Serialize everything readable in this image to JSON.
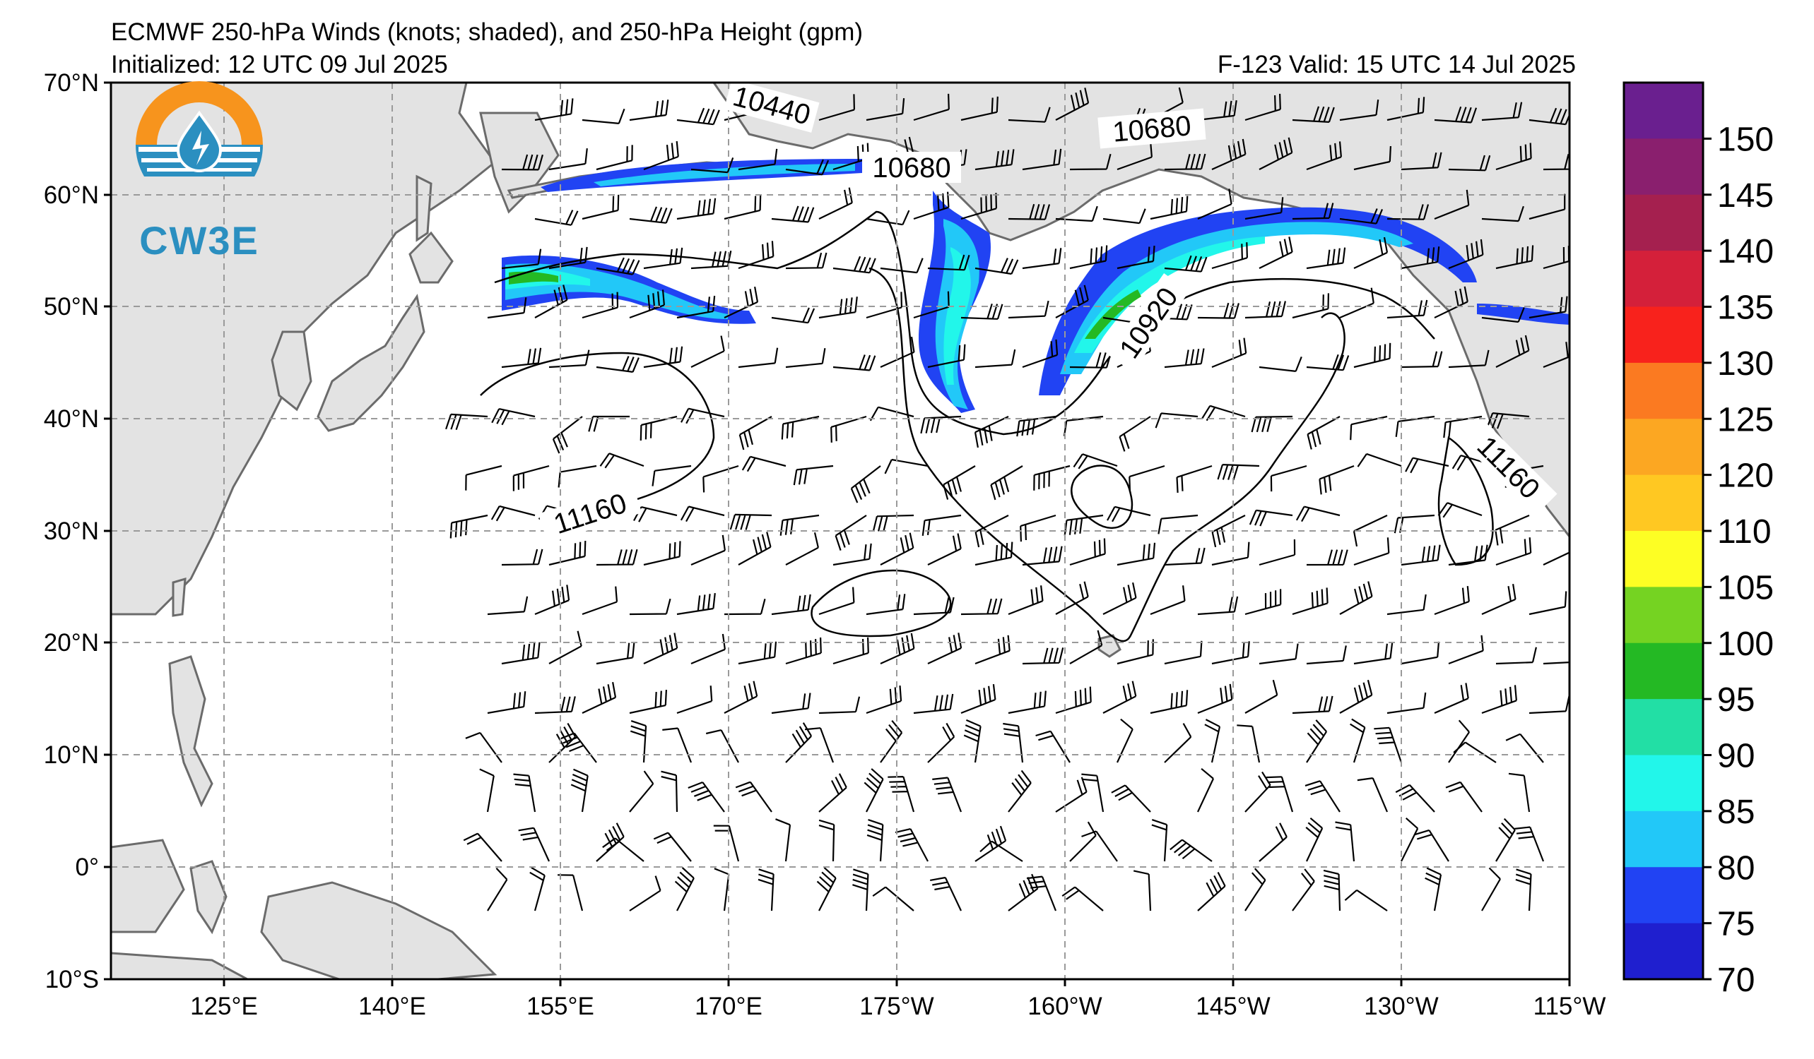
{
  "header": {
    "title": "ECMWF 250-hPa Winds (knots; shaded), and 250-hPa Height (gpm)",
    "initialized": "Initialized: 12 UTC 09 Jul 2025",
    "valid": "F-123  Valid: 15 UTC 14 Jul 2025"
  },
  "logo": {
    "text": "CW3E",
    "icon": "water-drop-in-sun-icon"
  },
  "map": {
    "projection": "cylindrical",
    "lon_range": [
      "115°E",
      "115°W"
    ],
    "lat_range": [
      "10°S",
      "70°N"
    ],
    "lat_labels": [
      "70°N",
      "60°N",
      "50°N",
      "40°N",
      "30°N",
      "20°N",
      "10°N",
      "0°",
      "10°S"
    ],
    "lon_labels": [
      "125°E",
      "140°E",
      "155°E",
      "170°E",
      "175°W",
      "160°W",
      "145°W",
      "130°W",
      "115°W"
    ],
    "gridlines": "dashed",
    "land_color": "#e3e3e3",
    "ocean_color": "#ffffff",
    "contour_labels": [
      "10440",
      "10680",
      "10680",
      "10920",
      "11160",
      "11160"
    ]
  },
  "colorbar": {
    "labels": [
      "150",
      "145",
      "140",
      "135",
      "130",
      "125",
      "120",
      "110",
      "105",
      "100",
      "95",
      "90",
      "85",
      "80",
      "75",
      "70"
    ],
    "colors": [
      "#6a1f8f",
      "#8a1f6e",
      "#a5204f",
      "#d4203a",
      "#f8221c",
      "#fb7a21",
      "#fca722",
      "#ffc822",
      "#fdfe24",
      "#75d322",
      "#24b924",
      "#22dfa5",
      "#22f6ea",
      "#22c8f8",
      "#2143f3",
      "#1f1fcf"
    ]
  }
}
